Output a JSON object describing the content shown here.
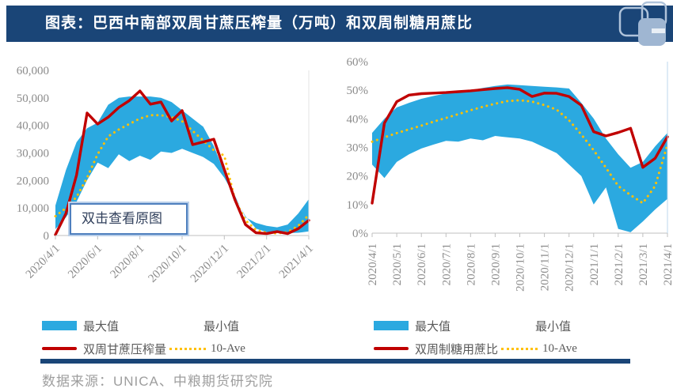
{
  "header": {
    "title": "图表：巴西中南部双周甘蔗压榨量（万吨）和双周制糖用蔗比",
    "logo": "cofco-futures-logo"
  },
  "overlay": {
    "hint": "双击查看原图"
  },
  "footer": {
    "source": "数据来源：UNICA、中粮期货研究院"
  },
  "colors": {
    "header_bg": "#1A4577",
    "band_blue": "#2BA9E0",
    "line_red": "#C00000",
    "avg_yellow": "#FFC000",
    "axis_text": "#8C8C8C",
    "legend_text": "#595959",
    "source_text": "#9E9E9E",
    "divider": "#1A4577"
  },
  "chart_data": [
    {
      "type": "line",
      "name": "biweekly-cane-crush-volume",
      "unit": "万吨",
      "x_labels": [
        "2020/4/1",
        "2020/6/1",
        "2020/8/1",
        "2020/10/1",
        "2020/12/1",
        "2021/2/1",
        "2021/4/1"
      ],
      "y_tick_labels": [
        "0",
        "10,000",
        "20,000",
        "30,000",
        "40,000",
        "50,000",
        "60,000"
      ],
      "ymin": 0,
      "ymax": 60000,
      "x_label_rotation": 45,
      "series": [
        {
          "name": "最大值",
          "role": "band_max",
          "color": "#2BA9E0",
          "values": [
            10900,
            23800,
            33900,
            39000,
            41000,
            47500,
            50000,
            50500,
            50500,
            50500,
            50000,
            48500,
            45500,
            42500,
            39500,
            32500,
            23000,
            14500,
            6600,
            4600,
            3500,
            3000,
            4000,
            8000,
            13200
          ]
        },
        {
          "name": "最小值",
          "role": "band_min",
          "color": "#FFFFFF",
          "values": [
            2300,
            6600,
            12300,
            20100,
            26500,
            24500,
            29500,
            27000,
            29000,
            27500,
            30500,
            30000,
            31500,
            30000,
            28500,
            26000,
            21000,
            14000,
            7000,
            2500,
            1200,
            1000,
            900,
            1000,
            1500
          ]
        },
        {
          "name": "双周甘蔗压榨量",
          "role": "line",
          "color": "#C00000",
          "values": [
            300,
            8000,
            22000,
            44500,
            40500,
            43000,
            46500,
            49000,
            52500,
            47700,
            48500,
            41600,
            45400,
            33000,
            34000,
            35000,
            24000,
            13000,
            4000,
            1000,
            700,
            1400,
            700,
            2500,
            5500
          ]
        },
        {
          "name": "10-Ave",
          "role": "average",
          "color": "#FFC000",
          "values": [
            7000,
            10000,
            14000,
            21000,
            29500,
            36000,
            38500,
            40500,
            42500,
            43700,
            43700,
            43000,
            41500,
            38000,
            34500,
            31000,
            29000,
            13000,
            5500,
            2000,
            1000,
            800,
            1200,
            3500,
            7500
          ]
        }
      ]
    },
    {
      "type": "line",
      "name": "biweekly-sugar-mix-ratio",
      "unit": "%",
      "x_labels": [
        "2020/4/1",
        "2020/5/1",
        "2020/6/1",
        "2020/7/1",
        "2020/8/1",
        "2020/9/1",
        "2020/10/1",
        "2020/11/1",
        "2020/12/1",
        "2021/1/1",
        "2021/2/1",
        "2021/3/1",
        "2021/4/1"
      ],
      "y_tick_labels": [
        "0%",
        "10%",
        "20%",
        "30%",
        "40%",
        "50%",
        "60%"
      ],
      "ymin": 0,
      "ymax": 60,
      "x_label_rotation": 90,
      "series": [
        {
          "name": "最大值",
          "role": "band_max",
          "color": "#2BA9E0",
          "values": [
            35.1,
            40.0,
            44.0,
            45.6,
            47.0,
            48.0,
            48.9,
            49.5,
            50.0,
            50.8,
            51.5,
            52.0,
            51.8,
            51.5,
            51.2,
            51.0,
            50.6,
            45.6,
            40.1,
            33.1,
            27.6,
            22.9,
            24.9,
            30.4,
            35.1
          ]
        },
        {
          "name": "最小值",
          "role": "band_min",
          "color": "#FFFFFF",
          "values": [
            24.0,
            19.3,
            24.9,
            27.6,
            29.6,
            31.0,
            32.3,
            32.0,
            33.1,
            32.5,
            34.0,
            33.5,
            33.1,
            32.0,
            30.0,
            28.0,
            24.0,
            20.0,
            10.0,
            16.0,
            1.5,
            0.3,
            4.1,
            8.3,
            12.0
          ]
        },
        {
          "name": "双周制糖用蔗比",
          "role": "line",
          "color": "#C00000",
          "values": [
            10.5,
            38.5,
            46.0,
            48.3,
            48.8,
            49.0,
            49.2,
            49.5,
            49.8,
            50.2,
            50.6,
            50.9,
            50.3,
            47.8,
            49.0,
            48.9,
            47.8,
            44.7,
            35.5,
            34.0,
            35.2,
            36.7,
            23.0,
            26.2,
            33.7
          ]
        },
        {
          "name": "10-Ave",
          "role": "average",
          "color": "#FFC000",
          "values": [
            32.0,
            33.5,
            35.0,
            36.3,
            37.6,
            39.0,
            40.3,
            41.6,
            43.0,
            44.2,
            45.3,
            46.2,
            46.5,
            46.0,
            44.8,
            43.2,
            39.5,
            34.5,
            29.0,
            22.9,
            16.5,
            13.3,
            10.5,
            16.5,
            31.0
          ]
        }
      ]
    }
  ]
}
